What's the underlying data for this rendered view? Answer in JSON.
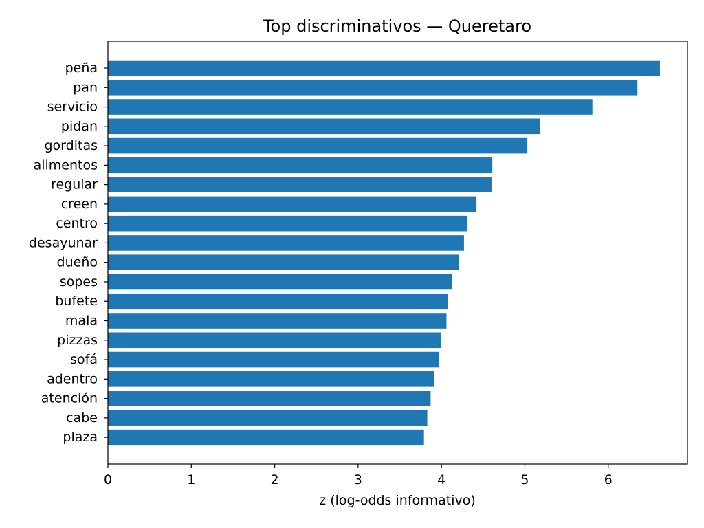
{
  "chart_data": {
    "type": "bar",
    "orientation": "horizontal",
    "title": "Top discriminativos — Queretaro",
    "xlabel": "z (log-odds informativo)",
    "ylabel": "",
    "xlim": [
      0,
      6.95
    ],
    "xticks": [
      0,
      1,
      2,
      3,
      4,
      5,
      6
    ],
    "grid": false,
    "bar_color": "#1f77b4",
    "categories": [
      "peña",
      "pan",
      "servicio",
      "pidan",
      "gorditas",
      "alimentos",
      "regular",
      "creen",
      "centro",
      "desayunar",
      "dueño",
      "sopes",
      "bufete",
      "mala",
      "pizzas",
      "sofá",
      "adentro",
      "atención",
      "cabe",
      "plaza"
    ],
    "values": [
      6.62,
      6.35,
      5.81,
      5.18,
      5.03,
      4.61,
      4.6,
      4.42,
      4.31,
      4.27,
      4.21,
      4.13,
      4.08,
      4.06,
      3.99,
      3.97,
      3.91,
      3.87,
      3.83,
      3.79
    ]
  }
}
